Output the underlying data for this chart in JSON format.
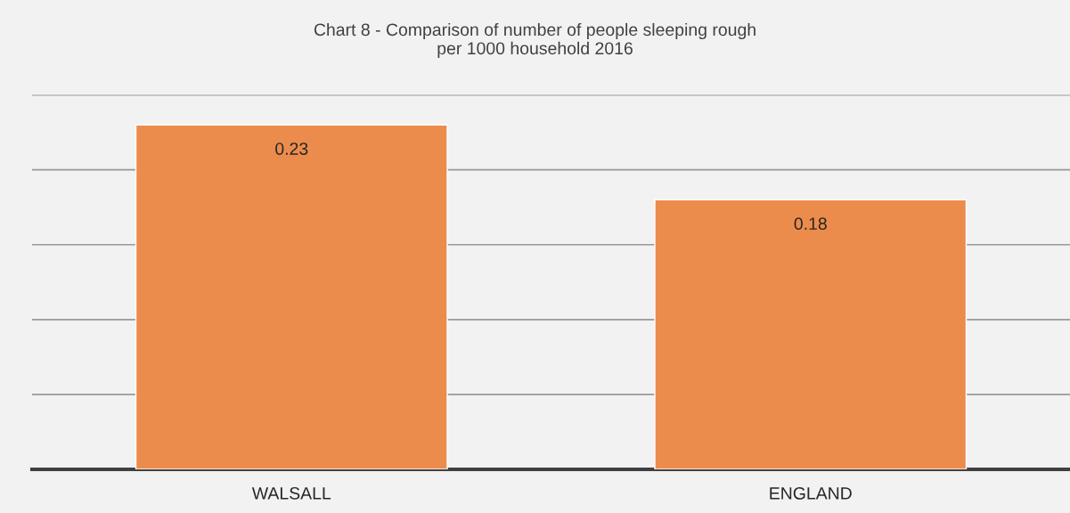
{
  "chart_data": {
    "type": "bar",
    "title": "Chart 8 - Comparison of number of people sleeping rough\nper 1000 household 2016",
    "categories": [
      "WALSALL",
      "ENGLAND"
    ],
    "values": [
      0.23,
      0.18
    ],
    "color": "#ec8c4c",
    "ylim": [
      0,
      0.25
    ],
    "yticks": [
      {
        "value": 0,
        "label": null
      },
      {
        "value": 0.05,
        "label": null
      },
      {
        "value": 0.1,
        "label": null
      },
      {
        "value": 0.15,
        "label": null
      },
      {
        "value": 0.2,
        "label": null
      },
      {
        "value": 0.25,
        "label": null
      }
    ],
    "grid": "y",
    "data_labels": true,
    "tick_labels": "x"
  }
}
